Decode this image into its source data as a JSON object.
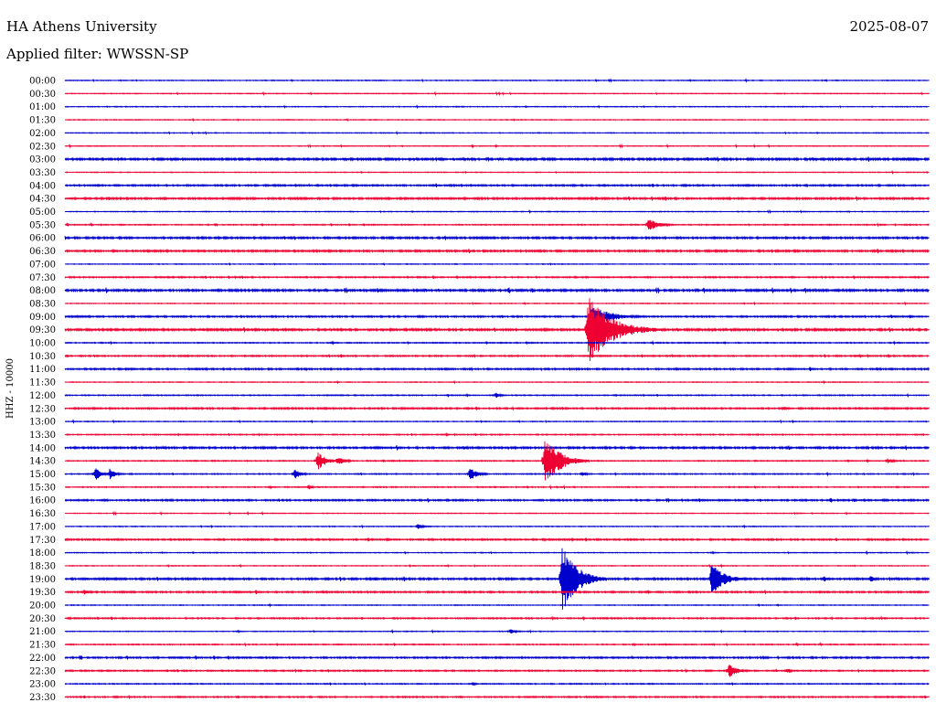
{
  "header": {
    "title": "HA Athens University",
    "date": "2025-08-07",
    "filter_label": "Applied filter: WWSSN-SP"
  },
  "chart_data": {
    "type": "line",
    "title": "HA Athens University",
    "date": "2025-08-07",
    "ylabel": "HHZ - 10000",
    "row_labels": [
      "00:00",
      "00:30",
      "01:00",
      "01:30",
      "02:00",
      "02:30",
      "03:00",
      "03:30",
      "04:00",
      "04:30",
      "05:00",
      "05:30",
      "06:00",
      "06:30",
      "07:00",
      "07:30",
      "08:00",
      "08:30",
      "09:00",
      "09:30",
      "10:00",
      "10:30",
      "11:00",
      "11:30",
      "12:00",
      "12:30",
      "13:00",
      "13:30",
      "14:00",
      "14:30",
      "15:00",
      "15:30",
      "16:00",
      "16:30",
      "17:00",
      "17:30",
      "18:00",
      "18:30",
      "19:00",
      "19:30",
      "20:00",
      "20:30",
      "21:00",
      "21:30",
      "22:00",
      "22:30",
      "23:00",
      "23:30"
    ],
    "minutes_per_row": 30,
    "trace_colors": [
      "#0000cc",
      "#ee0033"
    ],
    "row_noise_level": [
      0.3,
      0.3,
      0.3,
      0.3,
      0.3,
      0.3,
      0.8,
      0.3,
      0.6,
      0.7,
      0.3,
      0.4,
      0.7,
      0.7,
      0.3,
      0.5,
      0.8,
      0.3,
      0.6,
      0.8,
      0.4,
      0.5,
      0.6,
      0.3,
      0.4,
      0.6,
      0.3,
      0.4,
      0.7,
      0.4,
      0.4,
      0.4,
      0.6,
      0.3,
      0.3,
      0.6,
      0.3,
      0.3,
      0.7,
      0.6,
      0.3,
      0.5,
      0.3,
      0.4,
      0.6,
      0.5,
      0.4,
      0.5
    ],
    "events": [
      {
        "row": "05:30",
        "minute": 20.2,
        "amplitude": 6,
        "duration_min": 1.2
      },
      {
        "row": "09:00",
        "minute": 18.2,
        "amplitude": 12,
        "duration_min": 2.0
      },
      {
        "row": "09:30",
        "minute": 18.1,
        "amplitude": 34,
        "duration_min": 2.6
      },
      {
        "row": "12:00",
        "minute": 14.9,
        "amplitude": 3,
        "duration_min": 0.5
      },
      {
        "row": "14:30",
        "minute": 8.7,
        "amplitude": 9,
        "duration_min": 1.0
      },
      {
        "row": "14:30",
        "minute": 9.4,
        "amplitude": 4,
        "duration_min": 0.8
      },
      {
        "row": "14:30",
        "minute": 16.6,
        "amplitude": 26,
        "duration_min": 1.6
      },
      {
        "row": "14:30",
        "minute": 28.5,
        "amplitude": 3,
        "duration_min": 0.6
      },
      {
        "row": "15:00",
        "minute": 1.0,
        "amplitude": 6,
        "duration_min": 0.6
      },
      {
        "row": "15:00",
        "minute": 1.5,
        "amplitude": 6,
        "duration_min": 0.6
      },
      {
        "row": "15:00",
        "minute": 7.9,
        "amplitude": 5,
        "duration_min": 0.7
      },
      {
        "row": "15:00",
        "minute": 14.0,
        "amplitude": 7,
        "duration_min": 0.8
      },
      {
        "row": "15:00",
        "minute": 17.9,
        "amplitude": 3,
        "duration_min": 0.4
      },
      {
        "row": "15:30",
        "minute": 8.4,
        "amplitude": 2,
        "duration_min": 0.5
      },
      {
        "row": "17:00",
        "minute": 12.2,
        "amplitude": 3,
        "duration_min": 0.6
      },
      {
        "row": "19:00",
        "minute": 17.2,
        "amplitude": 36,
        "duration_min": 1.6
      },
      {
        "row": "19:00",
        "minute": 22.4,
        "amplitude": 18,
        "duration_min": 1.3
      },
      {
        "row": "19:00",
        "minute": 26.3,
        "amplitude": 3,
        "duration_min": 0.5
      },
      {
        "row": "19:00",
        "minute": 27.9,
        "amplitude": 3,
        "duration_min": 0.6
      },
      {
        "row": "19:30",
        "minute": 0.6,
        "amplitude": 3,
        "duration_min": 0.6
      },
      {
        "row": "21:00",
        "minute": 15.4,
        "amplitude": 3,
        "duration_min": 0.6
      },
      {
        "row": "22:30",
        "minute": 23.0,
        "amplitude": 7,
        "duration_min": 0.9
      },
      {
        "row": "22:30",
        "minute": 25.0,
        "amplitude": 3,
        "duration_min": 0.5
      },
      {
        "row": "23:00",
        "minute": 14.1,
        "amplitude": 2,
        "duration_min": 0.4
      }
    ]
  }
}
